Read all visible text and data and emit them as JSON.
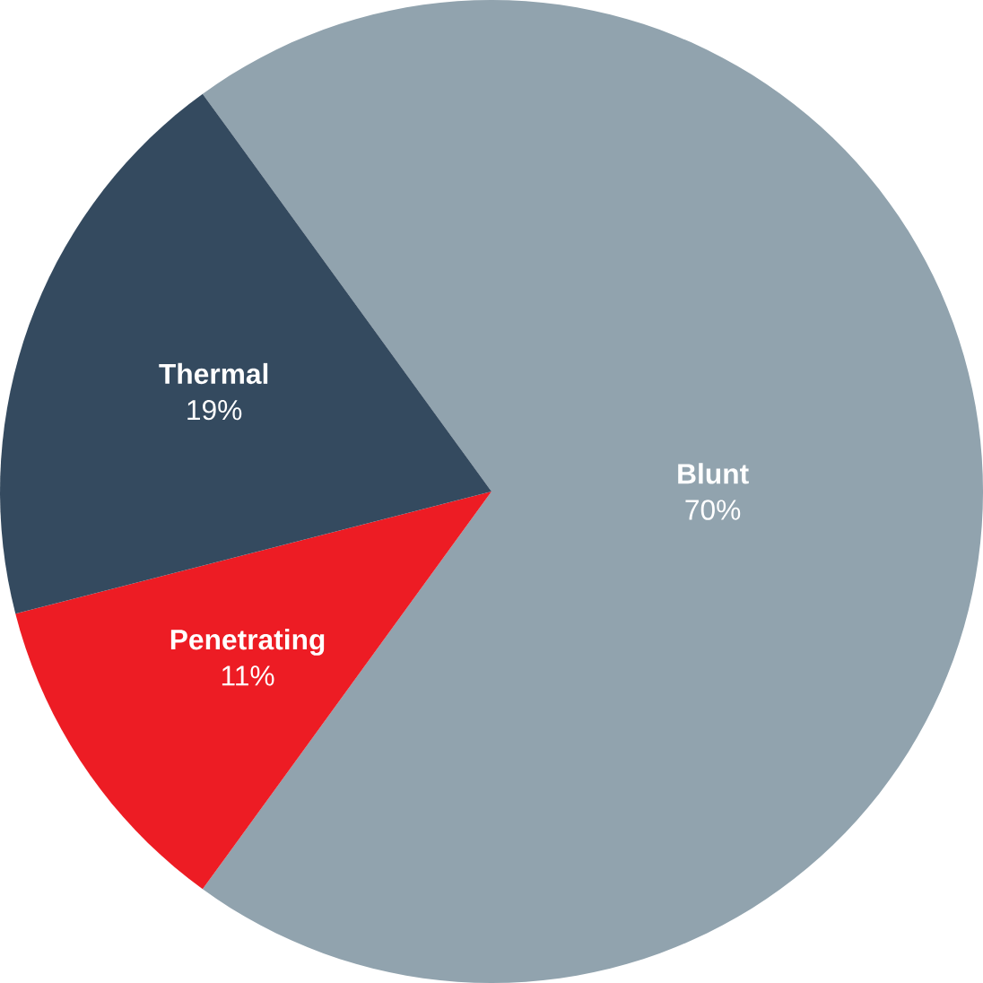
{
  "chart_data": {
    "type": "pie",
    "categories": [
      "Blunt",
      "Penetrating",
      "Thermal"
    ],
    "values": [
      70,
      11,
      19
    ],
    "colors": [
      "#91a3ae",
      "#ed1c24",
      "#344a5f"
    ],
    "value_labels": [
      "70%",
      "11%",
      "19%"
    ],
    "data_labels": true
  }
}
